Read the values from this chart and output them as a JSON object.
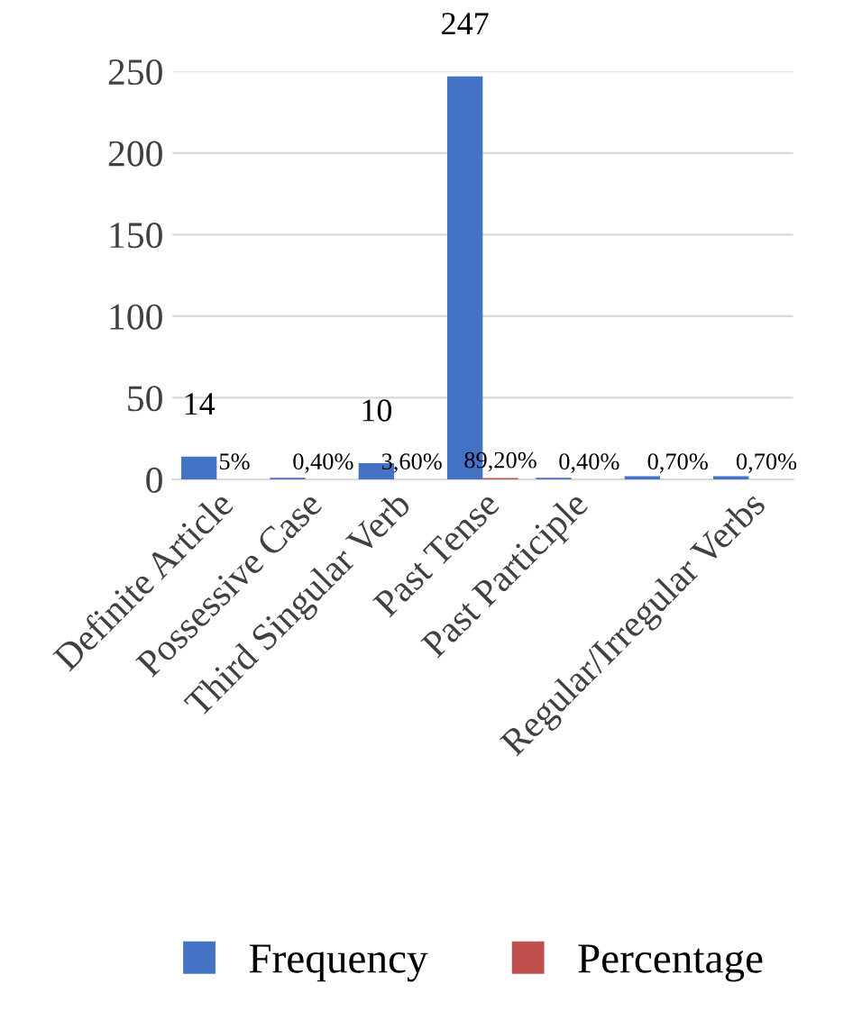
{
  "chart_data": {
    "type": "bar",
    "categories": [
      "Definite Article",
      "Possessive Case",
      "Third Singular Verb",
      "Past Tense",
      "Past Participle",
      null,
      "Regular/Irregular Verbs"
    ],
    "series": [
      {
        "name": "Frequency",
        "color": "#4472c4",
        "values": [
          14,
          1,
          10,
          247,
          1,
          2,
          2
        ],
        "value_labels": [
          "14",
          null,
          "10",
          "247",
          null,
          null,
          null
        ]
      },
      {
        "name": "Percentage",
        "color": "#c0504d",
        "values": [
          0.05,
          0.004,
          0.036,
          0.892,
          0.004,
          0.007,
          0.007
        ],
        "value_labels": [
          "5%",
          "0,40%",
          "3,60%",
          "89,20%",
          "0,40%",
          "0,70%",
          "0,70%"
        ]
      }
    ],
    "ylim": [
      0,
      250
    ],
    "yticks": [
      0,
      50,
      100,
      150,
      200,
      250
    ],
    "grid": "y",
    "legend": "bottom"
  }
}
